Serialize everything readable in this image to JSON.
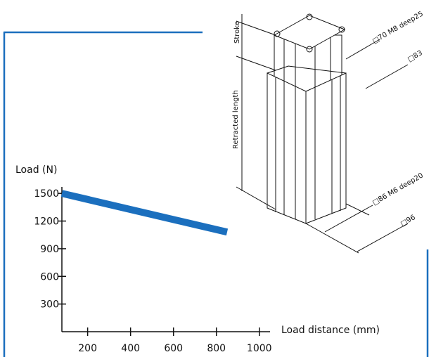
{
  "chart_data": {
    "type": "line",
    "title": "",
    "xlabel": "Load distance (mm)",
    "ylabel": "Load (N)",
    "xlim": [
      80,
      1050
    ],
    "ylim": [
      0,
      1570
    ],
    "x_ticks": [
      "200",
      "400",
      "600",
      "800",
      "1000"
    ],
    "y_ticks": [
      "300",
      "600",
      "900",
      "1200",
      "1500"
    ],
    "series": [
      {
        "x": [
          80,
          850
        ],
        "y": [
          1500,
          1080
        ],
        "color": "#1b6fbe"
      }
    ],
    "grid": false
  },
  "figure": {
    "dimensions": {
      "stroke": "Stroke",
      "retracted_length": "Retracted length",
      "top_inner": "□70 M8 deep25",
      "top_outer": "□83",
      "bottom_inner": "□86 M6 deep20",
      "bottom_outer": "□96"
    }
  },
  "frame_color": "#1b6fbe"
}
